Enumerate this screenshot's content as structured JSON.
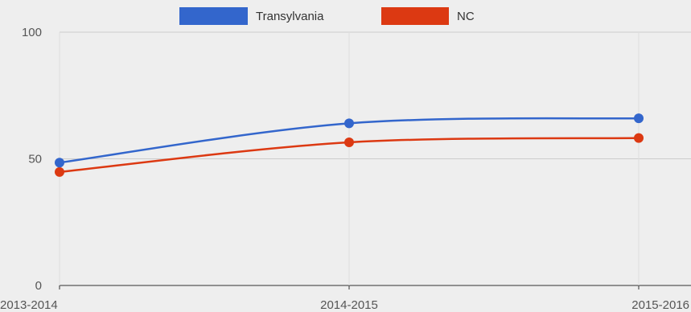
{
  "chart_data": {
    "type": "line",
    "title": "",
    "xlabel": "",
    "ylabel": "",
    "categories": [
      "2013-2014",
      "2014-2015",
      "2015-2016"
    ],
    "ylim": [
      0,
      100
    ],
    "yticks": [
      0,
      50,
      100
    ],
    "grid": true,
    "legend_position": "top",
    "curve": "smooth",
    "series": [
      {
        "name": "Transylvania",
        "values": [
          48.5,
          64,
          66
        ],
        "color": "#3366cc"
      },
      {
        "name": "NC",
        "values": [
          44.8,
          56.5,
          58.2
        ],
        "color": "#dc3912"
      }
    ]
  }
}
